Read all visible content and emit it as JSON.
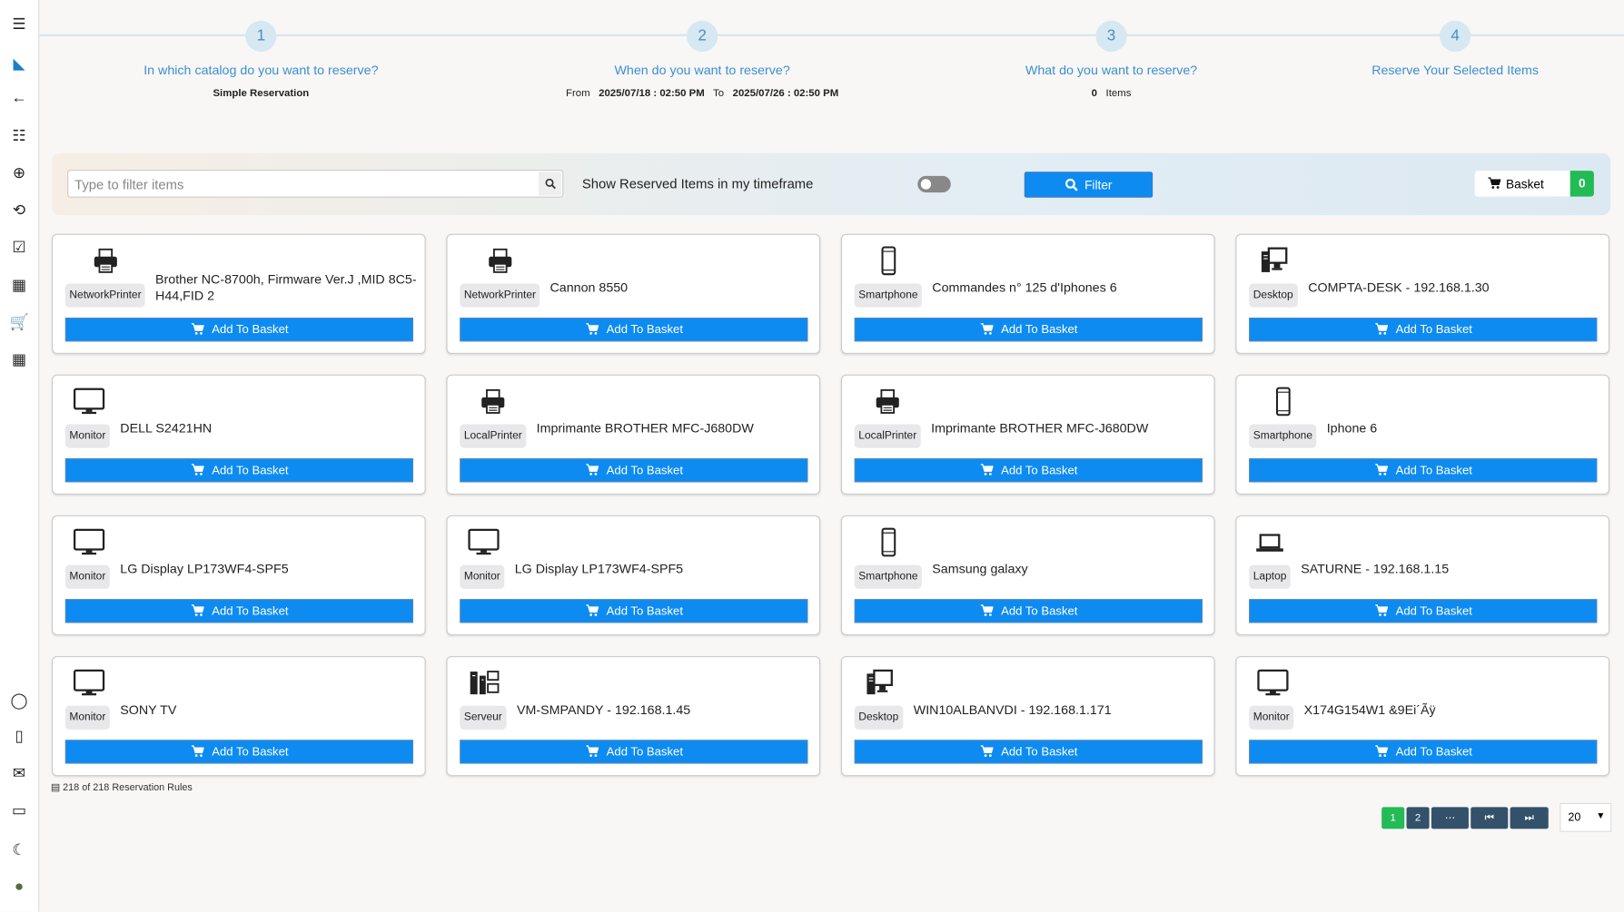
{
  "sidebar": {
    "items": [
      "menu-icon",
      "logo-icon",
      "back-icon",
      "catalog-icon",
      "add-icon",
      "sync-icon",
      "checklist-icon",
      "qr-code-icon",
      "cart-icon",
      "grid-icon",
      "chat-icon",
      "book-icon",
      "mail-icon",
      "comments-icon",
      "dark-mode-icon",
      "avatar"
    ]
  },
  "steps": [
    {
      "num": "1",
      "question": "In which catalog do you want to reserve?",
      "value": "Simple Reservation"
    },
    {
      "num": "2",
      "question": "When do you want to reserve?",
      "from_label": "From",
      "from": "2025/07/18 : 02:50 PM",
      "to_label": "To",
      "to": "2025/07/26 : 02:50 PM"
    },
    {
      "num": "3",
      "question": "What do you want to reserve?",
      "count": "0",
      "count_label": "Items"
    },
    {
      "num": "4",
      "question": "Reserve Your Selected Items"
    }
  ],
  "filter": {
    "placeholder": "Type to filter items",
    "show_reserved_label": "Show Reserved Items in my timeframe",
    "show_reserved": false,
    "filter_label": "Filter",
    "basket_label": "Basket",
    "basket_count": "0"
  },
  "add_label": "Add To Basket",
  "items": [
    {
      "title": "Brother NC-8700h, Firmware Ver.J ,MID 8C5-H44,FID 2",
      "type": "NetworkPrinter",
      "icon": "printer-icon"
    },
    {
      "title": "Cannon 8550",
      "type": "NetworkPrinter",
      "icon": "printer-icon"
    },
    {
      "title": "Commandes n° 125 d'Iphones 6",
      "type": "Smartphone",
      "icon": "smartphone-icon"
    },
    {
      "title": "COMPTA-DESK - 192.168.1.30",
      "type": "Desktop",
      "icon": "desktop-icon"
    },
    {
      "title": "DELL S2421HN",
      "type": "Monitor",
      "icon": "monitor-icon"
    },
    {
      "title": "Imprimante BROTHER MFC-J680DW",
      "type": "LocalPrinter",
      "icon": "printer-icon"
    },
    {
      "title": "Imprimante BROTHER MFC-J680DW",
      "type": "LocalPrinter",
      "icon": "printer-icon"
    },
    {
      "title": "Iphone 6",
      "type": "Smartphone",
      "icon": "smartphone-icon"
    },
    {
      "title": "LG Display LP173WF4-SPF5",
      "type": "Monitor",
      "icon": "monitor-icon"
    },
    {
      "title": "LG Display LP173WF4-SPF5",
      "type": "Monitor",
      "icon": "monitor-icon"
    },
    {
      "title": "Samsung galaxy",
      "type": "Smartphone",
      "icon": "smartphone-icon"
    },
    {
      "title": "SATURNE - 192.168.1.15",
      "type": "Laptop",
      "icon": "laptop-icon"
    },
    {
      "title": "SONY TV",
      "type": "Monitor",
      "icon": "monitor-icon"
    },
    {
      "title": "VM-SMPANDY - 192.168.1.45",
      "type": "Serveur",
      "icon": "server-icon"
    },
    {
      "title": "WIN10ALBANVDI - 192.168.1.171",
      "type": "Desktop",
      "icon": "desktop-icon"
    },
    {
      "title": "X174G154W1   &9Ei´Ãÿ",
      "type": "Monitor",
      "icon": "monitor-icon"
    }
  ],
  "footer": {
    "count_text": "218 of 218 Reservation Rules",
    "pages": [
      "1",
      "2",
      "⋯",
      "⏮",
      "⏭"
    ],
    "current_page": "1",
    "page_size": "20"
  },
  "colors": {
    "primary": "#0d8bf0",
    "success": "#22bb55",
    "pager": "#33516b",
    "step_text": "#3b8fd0"
  }
}
